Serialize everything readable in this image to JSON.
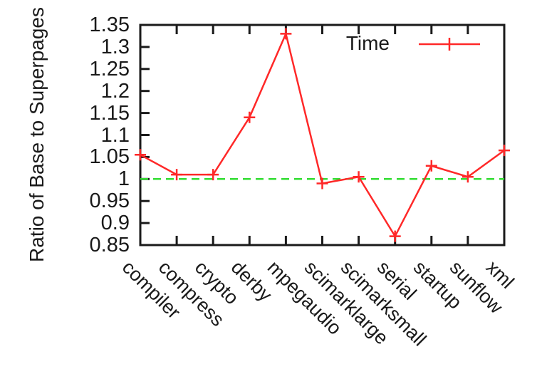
{
  "chart_data": {
    "type": "line",
    "title": "",
    "xlabel": "",
    "ylabel": "Ratio of Base to Superpages",
    "ylim": [
      0.85,
      1.35
    ],
    "ytick_labels": [
      "1.35",
      "1.3",
      "1.25",
      "1.2",
      "1.15",
      "1.1",
      "1.05",
      "1",
      "0.95",
      "0.9",
      "0.85"
    ],
    "categories": [
      "compiler",
      "compress",
      "crypto",
      "derby",
      "mpegaudio",
      "scimarklarge",
      "scimarksmall",
      "serial",
      "startup",
      "sunflow",
      "xml"
    ],
    "series": [
      {
        "name": "Time",
        "color": "#ff2828",
        "marker": "plus",
        "values": [
          1.055,
          1.01,
          1.01,
          1.14,
          1.33,
          0.99,
          1.005,
          0.87,
          1.03,
          1.005,
          1.065
        ]
      }
    ],
    "baseline": {
      "value": 1.0,
      "color": "#33dd33",
      "style": "dashed"
    },
    "legend": {
      "position": "top-right",
      "entries": [
        "Time"
      ]
    },
    "grid": false,
    "axis_color": "#1a1a1a"
  }
}
